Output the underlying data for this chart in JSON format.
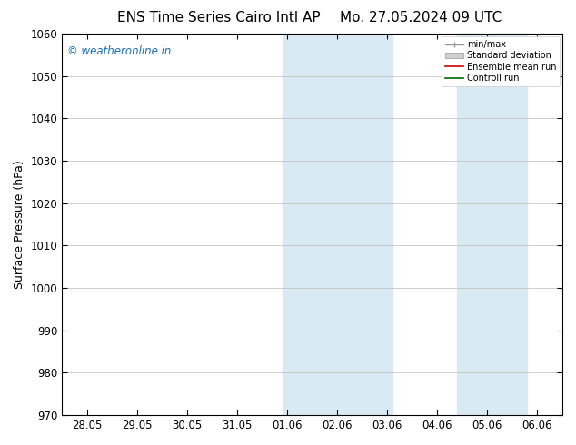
{
  "title_left": "ENS Time Series Cairo Intl AP",
  "title_right": "Mo. 27.05.2024 09 UTC",
  "ylabel": "Surface Pressure (hPa)",
  "ylim": [
    970,
    1060
  ],
  "yticks": [
    970,
    980,
    990,
    1000,
    1010,
    1020,
    1030,
    1040,
    1050,
    1060
  ],
  "xtick_labels": [
    "28.05",
    "29.05",
    "30.05",
    "31.05",
    "01.06",
    "02.06",
    "03.06",
    "04.06",
    "05.06",
    "06.06"
  ],
  "xtick_positions": [
    0,
    1,
    2,
    3,
    4,
    5,
    6,
    7,
    8,
    9
  ],
  "xlim": [
    -0.5,
    9.5
  ],
  "shaded_bands": [
    {
      "x_start": 3.9,
      "x_end": 5.0,
      "color": "#daeaf5"
    },
    {
      "x_start": 5.0,
      "x_end": 6.1,
      "color": "#daeaf5"
    },
    {
      "x_start": 7.4,
      "x_end": 8.1,
      "color": "#daeaf5"
    },
    {
      "x_start": 8.1,
      "x_end": 8.8,
      "color": "#daeaf5"
    }
  ],
  "watermark_text": "© weatheronline.in",
  "watermark_color": "#1a6faf",
  "background_color": "#ffffff",
  "plot_bg_color": "#ffffff",
  "grid_color": "#bbbbbb",
  "title_fontsize": 11,
  "tick_fontsize": 8.5,
  "ylabel_fontsize": 9
}
